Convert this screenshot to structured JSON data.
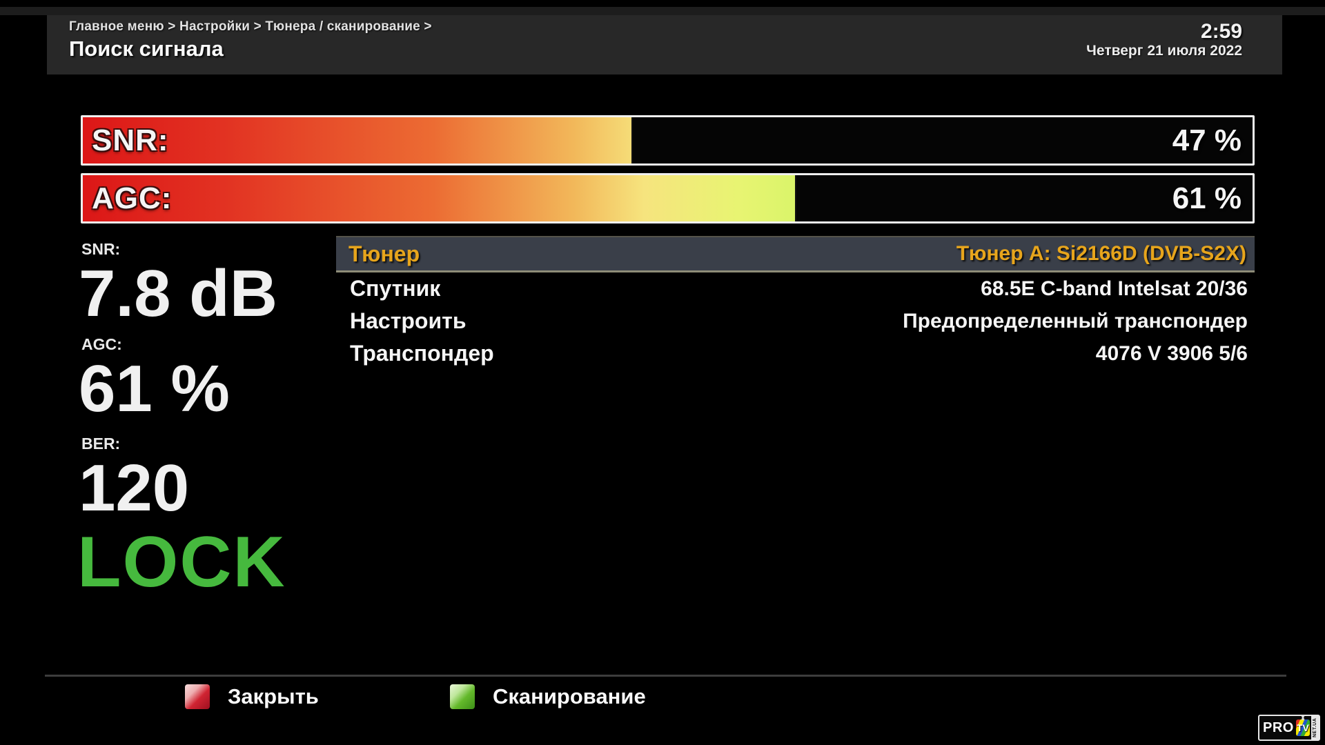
{
  "header": {
    "breadcrumb": "Главное меню > Настройки > Тюнера / сканирование >",
    "title": "Поиск сигнала",
    "time": "2:59",
    "date": "Четверг 21 июля 2022"
  },
  "signal_bars": [
    {
      "label": "SNR:",
      "value_text": "47 %",
      "percent": 47
    },
    {
      "label": "AGC:",
      "value_text": "61 %",
      "percent": 61
    }
  ],
  "stats": {
    "snr_label": "SNR:",
    "snr_value": "7.8 dB",
    "agc_label": "AGC:",
    "agc_value": "61 %",
    "ber_label": "BER:",
    "ber_value": "120",
    "lock_status": "LOCK"
  },
  "menu": {
    "rows": [
      {
        "label": "Тюнер",
        "value": "Тюнер A: Si2166D (DVB-S2X)",
        "selected": true
      },
      {
        "label": "Спутник",
        "value": "68.5E C-band Intelsat 20/36",
        "selected": false
      },
      {
        "label": "Настроить",
        "value": "Предопределенный транспондер",
        "selected": false
      },
      {
        "label": "Транспондер",
        "value": "4076 V 3906 5/6",
        "selected": false
      }
    ]
  },
  "footer": {
    "close_label": "Закрыть",
    "scan_label": "Сканирование"
  },
  "logo": {
    "pro": "PRO",
    "tv": "TV",
    "side": "NET.UA"
  },
  "colors": {
    "lock_green": "#46b93e",
    "selected_gold": "#e7a51c",
    "selected_row_bg": "#3a3f49",
    "key_red": "#c41428",
    "key_green": "#62bb2a",
    "header_bg": "#282828",
    "bar_gradient_start": "#dc1717",
    "bar_gradient_mid": "#f6e47e",
    "bar_gradient_end": "#3cc93c"
  }
}
